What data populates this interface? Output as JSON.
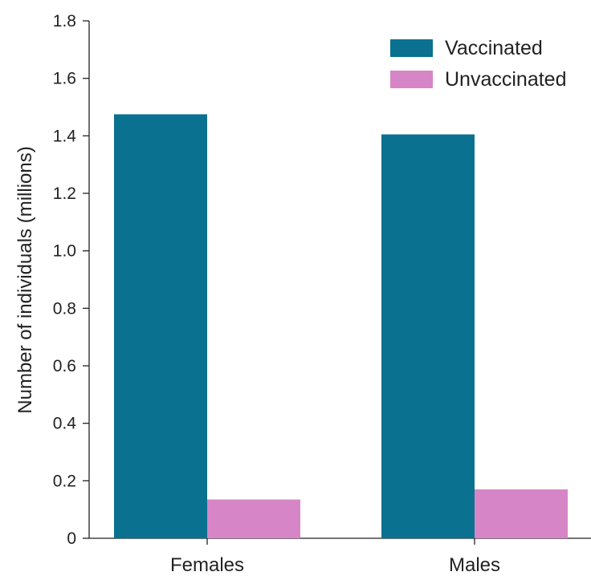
{
  "chart_data": {
    "type": "bar",
    "title": "",
    "xlabel": "",
    "ylabel": "Number of individuals (millions)",
    "categories": [
      "Females",
      "Males"
    ],
    "series": [
      {
        "name": "Vaccinated",
        "values": [
          1.475,
          1.405
        ],
        "color": "#0a7190"
      },
      {
        "name": "Unvaccinated",
        "values": [
          0.135,
          0.17
        ],
        "color": "#d686c6"
      }
    ],
    "ylim": [
      0,
      1.8
    ],
    "yticks": [
      "0",
      "0.2",
      "0.4",
      "0.6",
      "0.8",
      "1.0",
      "1.2",
      "1.4",
      "1.6",
      "1.8"
    ],
    "grid": false,
    "legend_position": "top-right"
  }
}
